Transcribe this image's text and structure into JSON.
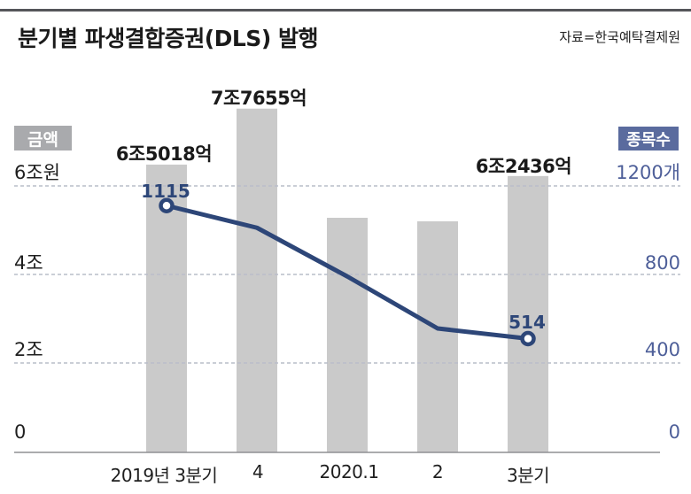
{
  "header": {
    "title": "분기별 파생결합증권(DLS) 발행",
    "source": "자료=한국예탁결제원"
  },
  "legend": {
    "left_badge": "금액",
    "right_badge": "종목수"
  },
  "colors": {
    "bar": "#cacaca",
    "line": "#2d4678",
    "right_axis_text": "#4e5f99",
    "left_badge_bg": "#a9aaad",
    "right_badge_bg": "#5a6b9e",
    "gridline": "#b9bdc9",
    "baseline": "#8f9093"
  },
  "chart_data": {
    "type": "bar",
    "title": "분기별 파생결합증권(DLS) 발행",
    "categories": [
      "2019년 3분기",
      "4",
      "2020.1",
      "2",
      "3분기"
    ],
    "series": [
      {
        "name": "금액",
        "type": "bar",
        "unit": "조원",
        "color": "#cacaca",
        "values": [
          6.5018,
          7.7655,
          5.3,
          5.22,
          6.2436
        ],
        "labels": [
          "6조5018억",
          "7조7655억",
          null,
          null,
          "6조2436억"
        ]
      },
      {
        "name": "종목수",
        "type": "line",
        "unit": "개",
        "color": "#2d4678",
        "values": [
          1115,
          1015,
          795,
          560,
          514
        ],
        "labels": [
          "1115",
          null,
          null,
          null,
          "514"
        ]
      }
    ],
    "left_axis": {
      "title": "금액",
      "ticks": [
        "6조원",
        "4조",
        "2조",
        "0"
      ],
      "range": [
        0,
        8
      ],
      "unit": "조원"
    },
    "right_axis": {
      "title": "종목수",
      "ticks": [
        "1200개",
        "800",
        "400",
        "0"
      ],
      "range": [
        0,
        1600
      ],
      "unit": "개"
    },
    "grid": "dashed horizontal",
    "legend_position": "badges top-left and top-right"
  }
}
